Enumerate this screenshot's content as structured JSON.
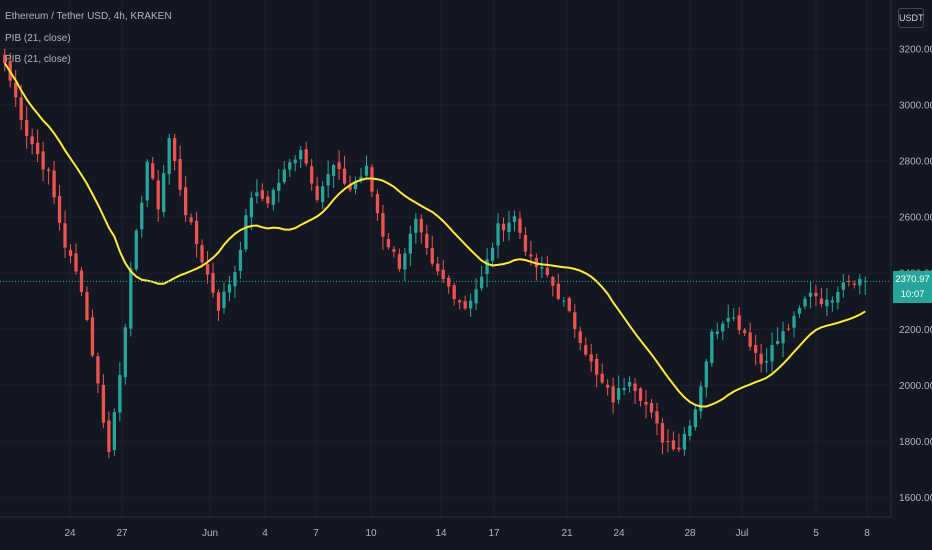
{
  "header": {
    "title": "Ethereum / Tether USD, 4h, KRAKEN",
    "indicator_1": "PIB (21, close)",
    "indicator_2": "PIB (21, close)",
    "currency": "USDT"
  },
  "price_tag": {
    "price": "2370.97",
    "countdown": "10:07"
  },
  "colors": {
    "background": "#131722",
    "up": "#26a69a",
    "down": "#ef5350",
    "ma": "#ffeb3b",
    "grid": "#1e222d"
  },
  "chart_data": {
    "type": "candlestick",
    "x_ticks": [
      "24",
      "27",
      "Jun",
      "4",
      "7",
      "10",
      "14",
      "17",
      "21",
      "24",
      "28",
      "Jul",
      "5",
      "8"
    ],
    "y_ticks": [
      "3200.00",
      "3000.00",
      "2800.00",
      "2600.00",
      "2400.00",
      "2200.00",
      "2000.00",
      "1800.00",
      "1600.00"
    ],
    "ylim": [
      1530,
      3375
    ],
    "last_price": 2370.97,
    "close_path": [
      [
        0,
        3150
      ],
      [
        4,
        2900
      ],
      [
        8,
        2750
      ],
      [
        11,
        2500
      ],
      [
        14,
        2350
      ],
      [
        17,
        2000
      ],
      [
        19,
        1760
      ],
      [
        21,
        2050
      ],
      [
        23,
        2400
      ],
      [
        26,
        2800
      ],
      [
        28,
        2640
      ],
      [
        30,
        2880
      ],
      [
        33,
        2620
      ],
      [
        36,
        2450
      ],
      [
        39,
        2280
      ],
      [
        42,
        2410
      ],
      [
        45,
        2680
      ],
      [
        48,
        2660
      ],
      [
        51,
        2760
      ],
      [
        54,
        2850
      ],
      [
        57,
        2680
      ],
      [
        60,
        2780
      ],
      [
        63,
        2700
      ],
      [
        66,
        2770
      ],
      [
        69,
        2540
      ],
      [
        72,
        2430
      ],
      [
        75,
        2580
      ],
      [
        78,
        2420
      ],
      [
        81,
        2350
      ],
      [
        84,
        2280
      ],
      [
        87,
        2380
      ],
      [
        90,
        2560
      ],
      [
        93,
        2600
      ],
      [
        96,
        2440
      ],
      [
        99,
        2390
      ],
      [
        102,
        2290
      ],
      [
        105,
        2170
      ],
      [
        108,
        2030
      ],
      [
        111,
        1950
      ],
      [
        114,
        2030
      ],
      [
        117,
        1930
      ],
      [
        120,
        1810
      ],
      [
        123,
        1780
      ],
      [
        126,
        1920
      ],
      [
        129,
        2180
      ],
      [
        132,
        2260
      ],
      [
        135,
        2190
      ],
      [
        138,
        2080
      ],
      [
        141,
        2160
      ],
      [
        144,
        2230
      ],
      [
        147,
        2340
      ],
      [
        150,
        2290
      ],
      [
        153,
        2380
      ],
      [
        157,
        2375
      ]
    ]
  }
}
